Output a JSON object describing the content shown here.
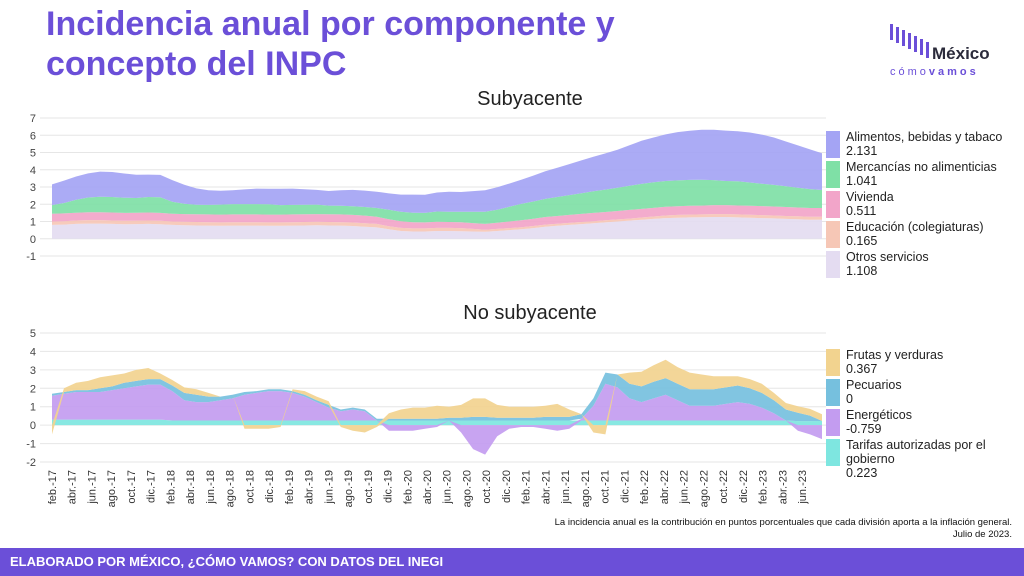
{
  "title": "Incidencia anual por componente y concepto del INPC",
  "logo": {
    "word": "México",
    "sub_light": "cómo",
    "sub_bold": "vamos"
  },
  "note": {
    "line1": "La incidencia anual es la contribución en puntos porcentuales que cada división aporta a la inflación general.",
    "line2": "Julio de 2023."
  },
  "footer": "ELABORADO POR MÉXICO, ¿CÓMO VAMOS? CON DATOS DEL INEGI",
  "colors": {
    "brand": "#6b4fd8"
  },
  "chart_data": [
    {
      "type": "area",
      "stacked": true,
      "title": "Subyacente",
      "ylim": [
        -1,
        7
      ],
      "yticks": [
        "-1",
        "0",
        "1",
        "2",
        "3",
        "4",
        "5",
        "6",
        "7"
      ],
      "grid": true,
      "legend_position": "right",
      "x_start": "feb.-17",
      "x_end": "jul.-23",
      "series": [
        {
          "name": "Otros servicios",
          "last_label": "1.108",
          "color": "#e4dcf1",
          "values": [
            0.8,
            0.82,
            0.86,
            0.88,
            0.88,
            0.86,
            0.84,
            0.85,
            0.86,
            0.84,
            0.8,
            0.78,
            0.77,
            0.76,
            0.75,
            0.76,
            0.76,
            0.76,
            0.75,
            0.75,
            0.76,
            0.77,
            0.78,
            0.77,
            0.76,
            0.74,
            0.7,
            0.66,
            0.55,
            0.45,
            0.42,
            0.42,
            0.45,
            0.45,
            0.44,
            0.42,
            0.4,
            0.45,
            0.5,
            0.55,
            0.62,
            0.7,
            0.75,
            0.8,
            0.85,
            0.9,
            0.95,
            1.0,
            1.05,
            1.1,
            1.15,
            1.2,
            1.22,
            1.24,
            1.25,
            1.26,
            1.26,
            1.24,
            1.22,
            1.2,
            1.18,
            1.15,
            1.13,
            1.1,
            1.108
          ]
        },
        {
          "name": "Educación (colegiaturas)",
          "last_label": "0.165",
          "color": "#f6c7b6",
          "values": [
            0.2,
            0.2,
            0.2,
            0.2,
            0.2,
            0.2,
            0.2,
            0.2,
            0.2,
            0.2,
            0.2,
            0.2,
            0.2,
            0.2,
            0.2,
            0.2,
            0.2,
            0.2,
            0.2,
            0.2,
            0.2,
            0.2,
            0.2,
            0.2,
            0.2,
            0.2,
            0.2,
            0.2,
            0.18,
            0.18,
            0.18,
            0.18,
            0.18,
            0.18,
            0.18,
            0.15,
            0.12,
            0.12,
            0.12,
            0.12,
            0.12,
            0.12,
            0.12,
            0.12,
            0.12,
            0.12,
            0.12,
            0.12,
            0.12,
            0.13,
            0.14,
            0.15,
            0.16,
            0.16,
            0.16,
            0.17,
            0.17,
            0.17,
            0.17,
            0.17,
            0.17,
            0.17,
            0.17,
            0.17,
            0.165
          ]
        },
        {
          "name": "Vivienda",
          "last_label": "0.511",
          "color": "#f2a5c9",
          "values": [
            0.45,
            0.45,
            0.45,
            0.46,
            0.46,
            0.46,
            0.46,
            0.46,
            0.46,
            0.46,
            0.45,
            0.45,
            0.45,
            0.45,
            0.45,
            0.45,
            0.45,
            0.45,
            0.45,
            0.45,
            0.45,
            0.45,
            0.45,
            0.45,
            0.45,
            0.44,
            0.44,
            0.42,
            0.4,
            0.38,
            0.36,
            0.35,
            0.35,
            0.34,
            0.34,
            0.34,
            0.34,
            0.36,
            0.38,
            0.4,
            0.42,
            0.44,
            0.45,
            0.46,
            0.47,
            0.48,
            0.48,
            0.49,
            0.5,
            0.5,
            0.5,
            0.5,
            0.5,
            0.51,
            0.51,
            0.52,
            0.52,
            0.52,
            0.52,
            0.52,
            0.52,
            0.52,
            0.51,
            0.51,
            0.511
          ]
        },
        {
          "name": "Mercancías no alimenticias",
          "last_label": "1.041",
          "color": "#7fe0a6",
          "values": [
            0.5,
            0.6,
            0.75,
            0.85,
            0.9,
            0.9,
            0.88,
            0.85,
            0.9,
            0.9,
            0.7,
            0.6,
            0.55,
            0.55,
            0.58,
            0.6,
            0.6,
            0.6,
            0.6,
            0.55,
            0.55,
            0.55,
            0.55,
            0.5,
            0.5,
            0.5,
            0.5,
            0.5,
            0.55,
            0.55,
            0.55,
            0.55,
            0.6,
            0.6,
            0.6,
            0.65,
            0.7,
            0.75,
            0.85,
            0.95,
            1.0,
            1.05,
            1.1,
            1.15,
            1.2,
            1.25,
            1.3,
            1.35,
            1.4,
            1.45,
            1.48,
            1.5,
            1.5,
            1.5,
            1.5,
            1.45,
            1.4,
            1.4,
            1.35,
            1.3,
            1.25,
            1.2,
            1.15,
            1.1,
            1.041
          ]
        },
        {
          "name": "Alimentos, bebidas y tabaco",
          "last_label": "2.131",
          "color": "#a4a4f4",
          "values": [
            1.2,
            1.3,
            1.35,
            1.4,
            1.45,
            1.45,
            1.4,
            1.35,
            1.3,
            1.3,
            1.25,
            1.1,
            0.95,
            0.85,
            0.8,
            0.8,
            0.85,
            0.9,
            0.9,
            0.95,
            0.95,
            0.9,
            0.85,
            0.85,
            0.9,
            0.95,
            0.95,
            0.95,
            0.95,
            1.0,
            1.05,
            1.05,
            1.1,
            1.15,
            1.15,
            1.2,
            1.25,
            1.3,
            1.35,
            1.4,
            1.5,
            1.6,
            1.7,
            1.8,
            1.9,
            2.0,
            2.1,
            2.2,
            2.35,
            2.5,
            2.6,
            2.7,
            2.8,
            2.85,
            2.9,
            2.92,
            2.92,
            2.9,
            2.9,
            2.85,
            2.75,
            2.6,
            2.45,
            2.3,
            2.131
          ]
        }
      ]
    },
    {
      "type": "area",
      "stacked": true,
      "title": "No subyacente",
      "ylim": [
        -2,
        5
      ],
      "yticks": [
        "-2",
        "-1",
        "0",
        "1",
        "2",
        "3",
        "4",
        "5"
      ],
      "grid": true,
      "legend_position": "right",
      "x_tick_labels": [
        "feb.-17",
        "abr.-17",
        "jun.-17",
        "ago.-17",
        "oct.-17",
        "dic.-17",
        "feb.-18",
        "abr.-18",
        "jun.-18",
        "ago.-18",
        "oct.-18",
        "dic.-18",
        "feb.-19",
        "abr.-19",
        "jun.-19",
        "ago.-19",
        "oct.-19",
        "dic.-19",
        "feb.-20",
        "abr.-20",
        "jun.-20",
        "ago.-20",
        "oct.-20",
        "dic.-20",
        "feb.-21",
        "abr.-21",
        "jun.-21",
        "ago.-21",
        "oct.-21",
        "dic.-21",
        "feb.-22",
        "abr.-22",
        "jun.-22",
        "ago.-22",
        "oct.-22",
        "dic.-22",
        "feb.-23",
        "abr.-23",
        "jun.-23"
      ],
      "series": [
        {
          "name": "Tarifas autorizadas por el gobierno",
          "last_label": "0.223",
          "color": "#7ee6e0",
          "values": [
            0.3,
            0.3,
            0.3,
            0.3,
            0.3,
            0.3,
            0.3,
            0.3,
            0.3,
            0.3,
            0.25,
            0.25,
            0.25,
            0.25,
            0.25,
            0.25,
            0.25,
            0.25,
            0.25,
            0.25,
            0.25,
            0.25,
            0.25,
            0.25,
            0.25,
            0.25,
            0.25,
            0.25,
            0.25,
            0.25,
            0.25,
            0.25,
            0.25,
            0.25,
            0.25,
            0.25,
            0.25,
            0.25,
            0.25,
            0.25,
            0.25,
            0.25,
            0.25,
            0.25,
            0.25,
            0.25,
            0.25,
            0.25,
            0.25,
            0.25,
            0.25,
            0.25,
            0.25,
            0.25,
            0.25,
            0.25,
            0.25,
            0.25,
            0.25,
            0.25,
            0.25,
            0.25,
            0.22,
            0.22,
            0.223
          ]
        },
        {
          "name": "Energéticos",
          "last_label": "-0.759",
          "color": "#c39cf0",
          "values": [
            1.3,
            1.4,
            1.5,
            1.5,
            1.5,
            1.6,
            1.7,
            1.8,
            1.9,
            1.9,
            1.6,
            1.1,
            1.0,
            1.0,
            1.1,
            1.2,
            1.4,
            1.5,
            1.6,
            1.6,
            1.5,
            1.3,
            1.0,
            0.7,
            0.5,
            0.6,
            0.5,
            0.0,
            -0.3,
            -0.3,
            -0.3,
            -0.2,
            -0.1,
            0.0,
            -0.4,
            -1.3,
            -1.6,
            -0.6,
            -0.2,
            -0.1,
            -0.1,
            -0.2,
            -0.3,
            -0.2,
            0.1,
            0.8,
            2.0,
            1.8,
            1.2,
            1.0,
            1.2,
            1.4,
            1.1,
            0.8,
            0.8,
            0.8,
            0.9,
            1.0,
            0.9,
            0.7,
            0.4,
            0.0,
            -0.3,
            -0.5,
            -0.759
          ]
        },
        {
          "name": "Pecuarios",
          "last_label": "0",
          "color": "#76c0de",
          "values": [
            0.1,
            0.1,
            0.1,
            0.1,
            0.2,
            0.2,
            0.3,
            0.3,
            0.3,
            0.3,
            0.3,
            0.4,
            0.4,
            0.3,
            0.2,
            0.2,
            0.15,
            0.1,
            0.1,
            0.1,
            0.1,
            0.1,
            0.1,
            0.15,
            0.1,
            0.1,
            0.1,
            0.1,
            0.1,
            0.1,
            0.1,
            0.1,
            0.1,
            0.15,
            0.15,
            0.2,
            0.2,
            0.15,
            0.15,
            0.15,
            0.15,
            0.2,
            0.2,
            0.2,
            0.25,
            0.4,
            0.6,
            0.7,
            0.8,
            0.85,
            0.9,
            0.9,
            0.9,
            0.9,
            0.9,
            0.9,
            0.9,
            0.9,
            0.85,
            0.8,
            0.7,
            0.6,
            0.45,
            0.3,
            0.0
          ]
        },
        {
          "name": "Frutas y verduras",
          "last_label": "0.367",
          "color": "#f2d38f",
          "values": [
            -0.5,
            0.2,
            0.4,
            0.5,
            0.6,
            0.6,
            0.5,
            0.6,
            0.6,
            0.3,
            0.3,
            0.3,
            0.3,
            0.2,
            0.0,
            0.0,
            -0.2,
            -0.2,
            -0.2,
            -0.1,
            0.1,
            0.2,
            0.2,
            0.2,
            -0.1,
            -0.3,
            -0.4,
            -0.1,
            0.3,
            0.5,
            0.6,
            0.6,
            0.7,
            0.6,
            0.7,
            1.0,
            1.0,
            0.7,
            0.6,
            0.6,
            0.6,
            0.6,
            0.7,
            0.4,
            0.0,
            -0.4,
            -0.5,
            0.0,
            0.6,
            0.8,
            0.9,
            1.0,
            0.9,
            0.9,
            0.8,
            0.7,
            0.6,
            0.5,
            0.5,
            0.5,
            0.4,
            0.35,
            0.35,
            0.36,
            0.367
          ]
        }
      ]
    }
  ]
}
